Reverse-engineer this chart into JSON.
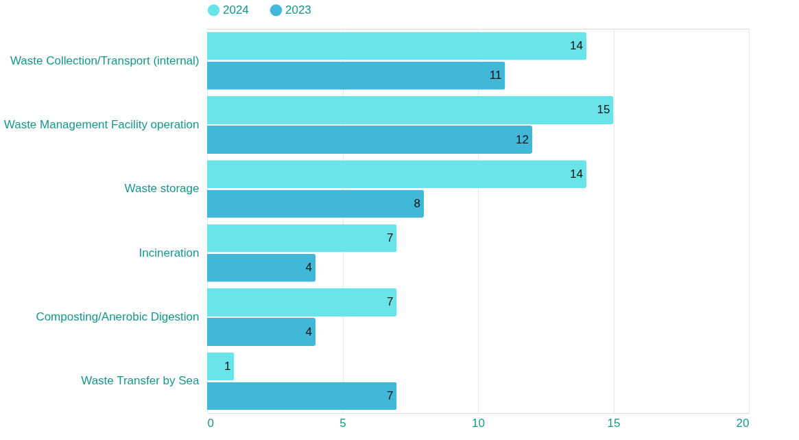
{
  "chart_data": {
    "type": "bar",
    "orientation": "horizontal",
    "categories": [
      "Waste Collection/Transport (internal)",
      "Waste Management Facility operation",
      "Waste storage",
      "Incineration",
      "Composting/Anerobic Digestion",
      "Waste Transfer by Sea"
    ],
    "series": [
      {
        "name": "2024",
        "color": "#6ae4e8",
        "values": [
          14,
          15,
          14,
          7,
          7,
          1
        ]
      },
      {
        "name": "2023",
        "color": "#42b8d8",
        "values": [
          11,
          12,
          8,
          4,
          4,
          7
        ]
      }
    ],
    "xlim": [
      0,
      20
    ],
    "xticks": [
      0,
      5,
      10,
      15,
      20
    ],
    "grid": "x",
    "legend": "top",
    "data_labels": true
  }
}
